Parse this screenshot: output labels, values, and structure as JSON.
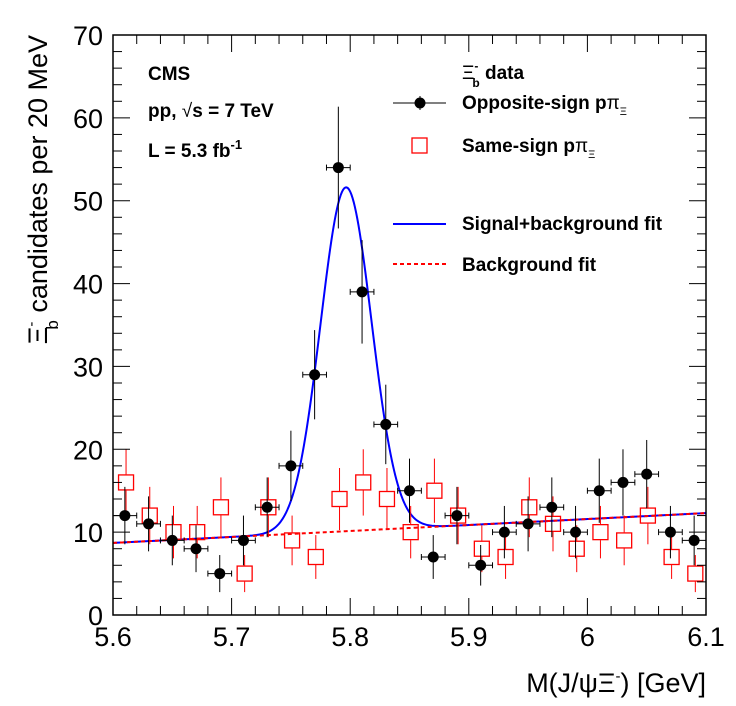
{
  "chart_data": {
    "type": "scatter",
    "xlabel": "M(J/ψΞ⁻) [GeV]",
    "ylabel": "Ξ⁻b candidates per 20 MeV",
    "xlim": [
      5.6,
      6.1
    ],
    "ylim": [
      0,
      70
    ],
    "x_ticks": [
      "5.6",
      "5.7",
      "5.8",
      "5.9",
      "6",
      "6.1"
    ],
    "y_ticks": [
      "0",
      "10",
      "20",
      "30",
      "40",
      "50",
      "60",
      "70"
    ],
    "bin_width": 0.02,
    "info_lines": [
      "CMS",
      "pp, √s = 7 TeV",
      "L = 5.3 fb-1"
    ],
    "legend_header": "Ξ⁻b data",
    "legend_placement": "top-right",
    "series": [
      {
        "name": "Opposite-sign pπΞ",
        "marker": "filled-circle",
        "color": "#000000",
        "x": [
          5.61,
          5.63,
          5.65,
          5.67,
          5.69,
          5.71,
          5.73,
          5.75,
          5.77,
          5.79,
          5.81,
          5.83,
          5.85,
          5.87,
          5.89,
          5.91,
          5.93,
          5.95,
          5.97,
          5.99,
          6.01,
          6.03,
          6.05,
          6.07,
          6.09
        ],
        "y": [
          12,
          11,
          9,
          8,
          5,
          9,
          13,
          18,
          29,
          54,
          39,
          23,
          15,
          7,
          12,
          6,
          10,
          11,
          13,
          10,
          15,
          16,
          17,
          10,
          9
        ]
      },
      {
        "name": "Same-sign pπΞ",
        "marker": "open-square",
        "color": "#ff0000",
        "x": [
          5.61,
          5.63,
          5.65,
          5.67,
          5.69,
          5.71,
          5.73,
          5.75,
          5.77,
          5.79,
          5.81,
          5.83,
          5.85,
          5.87,
          5.89,
          5.91,
          5.93,
          5.95,
          5.97,
          5.99,
          6.01,
          6.03,
          6.05,
          6.07,
          6.09
        ],
        "y": [
          16,
          12,
          10,
          10,
          13,
          5,
          13,
          9,
          7,
          14,
          16,
          14,
          10,
          15,
          12,
          8,
          7,
          13,
          11,
          8,
          10,
          9,
          12,
          7,
          5
        ]
      },
      {
        "name": "Signal+background fit",
        "type": "line",
        "color": "#0000ff",
        "style": "solid",
        "background": {
          "slope": 7.2,
          "intercept_at_x0": 8.7,
          "x0": 5.6
        },
        "gaussian": {
          "amplitude": 41.5,
          "mean": 5.7965,
          "sigma": 0.0215
        }
      },
      {
        "name": "Background fit",
        "type": "line",
        "color": "#ff0000",
        "style": "dashed",
        "background": {
          "slope": 7.2,
          "intercept_at_x0": 8.7,
          "x0": 5.6
        }
      }
    ]
  }
}
